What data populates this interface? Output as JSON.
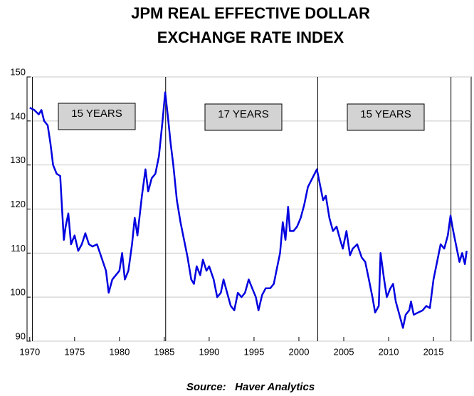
{
  "chart_data": {
    "type": "line",
    "title": [
      "JPM REAL EFFECTIVE DOLLAR",
      "EXCHANGE RATE INDEX"
    ],
    "source": "Source:   Haver Analytics",
    "annotations": [
      "15 YEARS",
      "17 YEARS",
      "15 YEARS"
    ],
    "vlines": [
      1970.3,
      1985.15,
      2002.1,
      2016.95
    ],
    "xlim": [
      1969.7,
      2019.2
    ],
    "ylim": [
      90,
      150
    ],
    "xticks": [
      1970,
      1975,
      1980,
      1985,
      1990,
      1995,
      2000,
      2005,
      2010,
      2015
    ],
    "yticks": [
      90,
      100,
      110,
      120,
      130,
      140,
      150
    ],
    "grid": true,
    "series": [
      {
        "color": "#0000e0",
        "x": [
          1970.0,
          1970.5,
          1971.0,
          1971.3,
          1971.6,
          1972.0,
          1972.3,
          1972.6,
          1973.0,
          1973.4,
          1973.6,
          1973.8,
          1974.0,
          1974.3,
          1974.6,
          1975.0,
          1975.4,
          1975.8,
          1976.2,
          1976.6,
          1977.0,
          1977.5,
          1978.0,
          1978.5,
          1978.8,
          1979.2,
          1979.6,
          1980.0,
          1980.3,
          1980.6,
          1981.0,
          1981.4,
          1981.7,
          1982.0,
          1982.5,
          1982.9,
          1983.2,
          1983.6,
          1984.0,
          1984.4,
          1984.8,
          1985.1,
          1985.4,
          1985.7,
          1986.0,
          1986.4,
          1986.8,
          1987.2,
          1987.6,
          1988.0,
          1988.3,
          1988.6,
          1989.0,
          1989.3,
          1989.7,
          1990.0,
          1990.5,
          1990.9,
          1991.3,
          1991.6,
          1992.0,
          1992.4,
          1992.8,
          1993.2,
          1993.6,
          1994.0,
          1994.4,
          1994.8,
          1995.2,
          1995.5,
          1995.9,
          1996.3,
          1996.8,
          1997.2,
          1997.5,
          1997.9,
          1998.2,
          1998.5,
          1998.8,
          1999.0,
          1999.4,
          1999.8,
          2000.2,
          2000.6,
          2001.0,
          2001.5,
          2002.0,
          2002.3,
          2002.7,
          2003.0,
          2003.4,
          2003.8,
          2004.2,
          2004.6,
          2004.9,
          2005.3,
          2005.7,
          2006.0,
          2006.5,
          2007.0,
          2007.4,
          2007.8,
          2008.2,
          2008.5,
          2008.9,
          2009.1,
          2009.5,
          2009.8,
          2010.2,
          2010.5,
          2010.8,
          2011.2,
          2011.6,
          2011.9,
          2012.3,
          2012.5,
          2012.8,
          2013.3,
          2013.8,
          2014.2,
          2014.6,
          2015.0,
          2015.4,
          2015.8,
          2016.2,
          2016.6,
          2016.9,
          2017.2,
          2017.6,
          2017.9,
          2018.2,
          2018.5,
          2018.7
        ],
        "values": [
          143,
          142.5,
          141.5,
          142.5,
          140,
          139,
          135,
          130,
          128,
          127.5,
          120,
          113,
          116,
          119,
          112,
          114,
          110.5,
          112,
          114.5,
          112,
          111.5,
          112,
          109,
          106,
          101,
          104,
          105,
          106,
          110,
          104,
          106,
          112,
          118,
          114,
          123,
          129,
          124,
          127,
          128,
          132,
          140,
          146.5,
          141,
          135,
          130,
          122,
          117,
          113,
          109,
          104,
          103,
          107,
          105,
          108.5,
          106,
          107,
          104,
          100,
          101,
          104,
          101,
          98,
          97,
          101,
          100,
          101,
          104,
          102,
          100,
          97,
          100.5,
          102,
          102,
          103,
          106,
          110,
          117,
          113,
          120.5,
          115,
          115,
          116,
          118,
          121,
          125,
          127,
          129,
          126,
          122,
          123,
          118,
          115,
          116,
          113,
          111,
          115,
          109.5,
          111,
          112,
          109,
          108,
          104,
          100,
          96.5,
          98,
          110,
          104,
          100,
          102,
          103,
          99,
          96,
          93,
          96,
          97,
          99,
          96,
          96.5,
          97,
          98,
          97.5,
          104,
          108,
          112,
          111,
          114,
          118.5,
          115,
          111,
          108,
          110,
          107.5,
          110.5
        ]
      }
    ]
  }
}
